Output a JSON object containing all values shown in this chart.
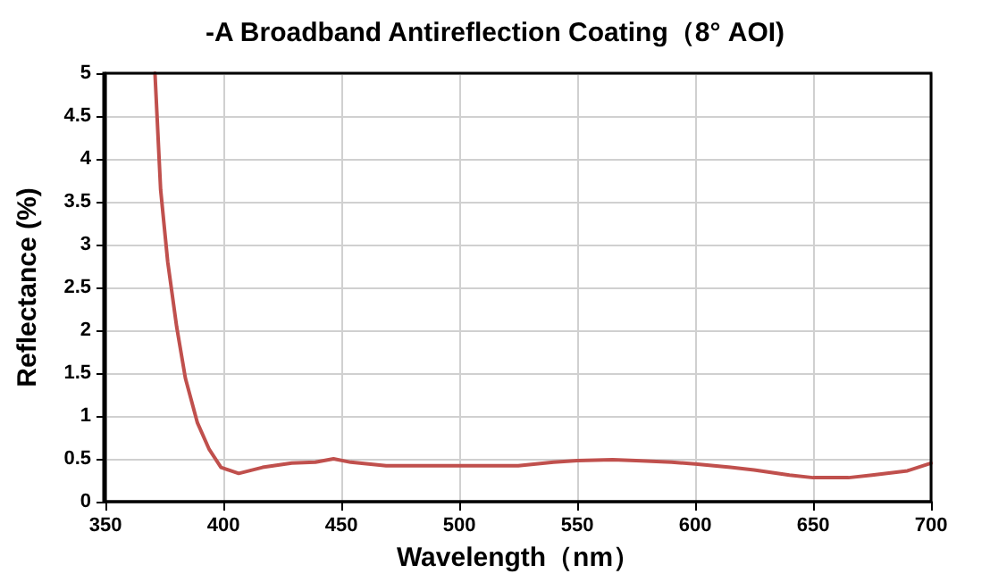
{
  "chart_data": {
    "type": "line",
    "title": "-A Broadband Antireflection Coating（8° AOI)",
    "xlabel": "Wavelength（nm）",
    "ylabel": "Reflectance (%)",
    "series": [
      {
        "color": "#c0504d",
        "x": [
          371,
          373.4,
          376.4,
          380.2,
          383.9,
          389,
          394,
          399,
          406.5,
          416.6,
          429,
          439,
          446.7,
          454,
          469,
          500,
          525,
          540,
          550,
          565,
          575,
          590,
          600,
          615,
          625,
          640,
          650,
          665,
          675,
          690,
          700
        ],
        "values": [
          5,
          3.64,
          2.8,
          2.04,
          1.44,
          0.92,
          0.61,
          0.4,
          0.33,
          0.4,
          0.45,
          0.46,
          0.5,
          0.46,
          0.42,
          0.42,
          0.42,
          0.46,
          0.48,
          0.49,
          0.48,
          0.46,
          0.44,
          0.4,
          0.37,
          0.31,
          0.28,
          0.28,
          0.31,
          0.36,
          0.45
        ]
      }
    ],
    "xlim": [
      350,
      700
    ],
    "xticks": [
      350,
      400,
      450,
      500,
      550,
      600,
      650,
      700
    ],
    "ylim": [
      0,
      5
    ],
    "yticks": [
      0,
      0.5,
      1,
      1.5,
      2,
      2.5,
      3,
      3.5,
      4,
      4.5,
      5
    ],
    "grid": true,
    "marker": "none",
    "line_style": "solid"
  }
}
